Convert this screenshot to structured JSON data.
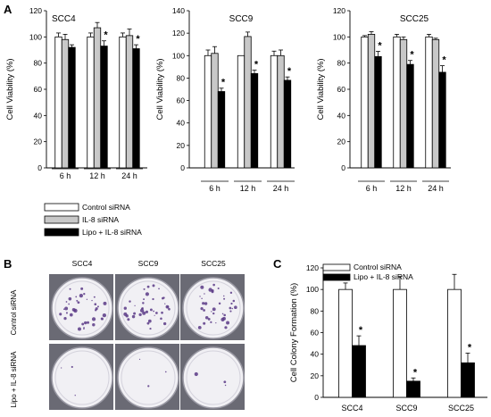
{
  "panels": {
    "A": "A",
    "B": "B",
    "C": "C"
  },
  "colors": {
    "control": "#ffffff",
    "il8": "#c8c8c8",
    "lipo": "#000000",
    "plate_bg": "#5a5a66",
    "colony": "#5a3a86"
  },
  "legend_A": [
    "Control siRNA",
    "IL-8 siRNA",
    "Lipo + IL-8 siRNA"
  ],
  "legend_C": [
    "Control siRNA",
    "Lipo + IL-8 siRNA"
  ],
  "chart_data": [
    {
      "type": "bar",
      "title": "SCC4",
      "ylabel": "Cell Viability (%)",
      "ylim": [
        0,
        120
      ],
      "yticks": [
        0,
        20,
        40,
        60,
        80,
        100,
        120
      ],
      "categories": [
        "6 h",
        "12 h",
        "24 h"
      ],
      "series": [
        {
          "name": "Control siRNA",
          "values": [
            100,
            100,
            100
          ],
          "errors": [
            3,
            3,
            3
          ]
        },
        {
          "name": "IL-8 siRNA",
          "values": [
            98,
            107,
            101
          ],
          "errors": [
            4,
            4,
            5
          ]
        },
        {
          "name": "Lipo + IL-8 siRNA",
          "values": [
            92,
            93,
            91
          ],
          "errors": [
            2,
            4,
            3
          ]
        }
      ],
      "significance": [
        [
          false,
          false,
          false
        ],
        [
          false,
          false,
          false
        ],
        [
          false,
          true,
          true
        ]
      ],
      "star": "*"
    },
    {
      "type": "bar",
      "title": "SCC9",
      "ylabel": "Cell Viability (%)",
      "ylim": [
        0,
        140
      ],
      "yticks": [
        0,
        20,
        40,
        60,
        80,
        100,
        120,
        140
      ],
      "categories": [
        "6 h",
        "12 h",
        "24 h"
      ],
      "series": [
        {
          "name": "Control siRNA",
          "values": [
            100,
            100,
            100
          ],
          "errors": [
            5,
            0,
            4
          ]
        },
        {
          "name": "IL-8 siRNA",
          "values": [
            102,
            117,
            100
          ],
          "errors": [
            6,
            4,
            5
          ]
        },
        {
          "name": "Lipo + IL-8 siRNA",
          "values": [
            68,
            84,
            78
          ],
          "errors": [
            3,
            3,
            3
          ]
        }
      ],
      "significance": [
        [
          false,
          false,
          false
        ],
        [
          false,
          false,
          false
        ],
        [
          true,
          true,
          true
        ]
      ],
      "star": "*"
    },
    {
      "type": "bar",
      "title": "SCC25",
      "ylabel": "Cell Viability (%)",
      "ylim": [
        0,
        120
      ],
      "yticks": [
        0,
        20,
        40,
        60,
        80,
        100,
        120
      ],
      "categories": [
        "6 h",
        "12 h",
        "24 h"
      ],
      "series": [
        {
          "name": "Control siRNA",
          "values": [
            100,
            100,
            100
          ],
          "errors": [
            1,
            2,
            2
          ]
        },
        {
          "name": "IL-8 siRNA",
          "values": [
            102,
            98,
            98
          ],
          "errors": [
            2,
            2,
            1
          ]
        },
        {
          "name": "Lipo + IL-8 siRNA",
          "values": [
            85,
            79,
            73
          ],
          "errors": [
            4,
            3,
            5
          ]
        }
      ],
      "significance": [
        [
          false,
          false,
          false
        ],
        [
          false,
          false,
          false
        ],
        [
          true,
          true,
          true
        ]
      ],
      "star": "*"
    },
    {
      "type": "bar",
      "title": "",
      "ylabel": "Cell Colony Formation (%)",
      "ylim": [
        0,
        120
      ],
      "yticks": [
        0,
        20,
        40,
        60,
        80,
        100,
        120
      ],
      "categories": [
        "SCC4",
        "SCC9",
        "SCC25"
      ],
      "series": [
        {
          "name": "Control siRNA",
          "values": [
            100,
            100,
            100
          ],
          "errors": [
            6,
            12,
            14
          ]
        },
        {
          "name": "Lipo + IL-8 siRNA",
          "values": [
            48,
            15,
            32
          ],
          "errors": [
            9,
            3,
            9
          ]
        }
      ],
      "significance": [
        [
          false,
          false,
          false
        ],
        [
          true,
          true,
          true
        ]
      ],
      "star": "*"
    }
  ],
  "plates": {
    "columns": [
      "SCC4",
      "SCC9",
      "SCC25"
    ],
    "rows": [
      "Control siRNA",
      "Lipo + IL-8 siRNA"
    ]
  }
}
